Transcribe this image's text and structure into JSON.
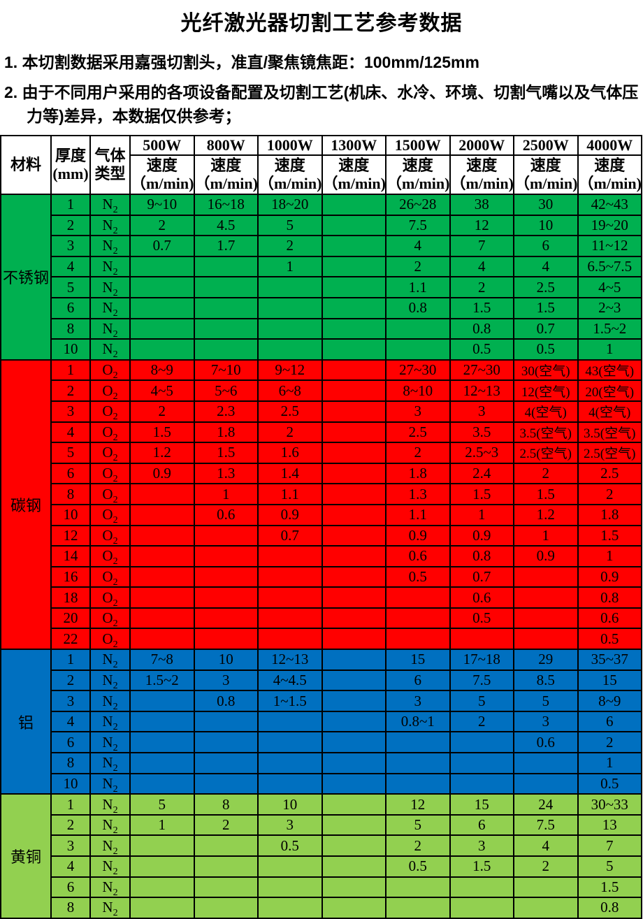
{
  "title": "光纤激光器切割工艺参考数据",
  "notes": [
    {
      "text": "1. 本切割数据采用嘉强切割头，准直/聚焦镜焦距：100mm/125mm",
      "indent": false
    },
    {
      "text": "2. 由于不同用户采用的各项设备配置及切割工艺(机床、水冷、环境、切割气嘴以及气体压",
      "indent": false
    },
    {
      "text": "力等)差异，本数据仅供参考；",
      "indent": true
    }
  ],
  "header": {
    "material": "材料",
    "thickness_l1": "厚度",
    "thickness_l2": "(mm)",
    "gas_l1": "气体",
    "gas_l2": "类型",
    "powers": [
      "500W",
      "800W",
      "1000W",
      "1300W",
      "1500W",
      "2000W",
      "2500W",
      "4000W"
    ],
    "speed_label": "速度",
    "speed_unit": "（m/min)"
  },
  "sections": [
    {
      "material": "不锈钢",
      "color": "#00B050",
      "gas": {
        "base": "N",
        "sub": "2"
      },
      "rows": [
        {
          "t": "1",
          "v": [
            "9~10",
            "16~18",
            "18~20",
            "",
            "26~28",
            "38",
            "30",
            "42~43"
          ]
        },
        {
          "t": "2",
          "v": [
            "2",
            "4.5",
            "5",
            "",
            "7.5",
            "12",
            "10",
            "19~20"
          ]
        },
        {
          "t": "3",
          "v": [
            "0.7",
            "1.7",
            "2",
            "",
            "4",
            "7",
            "6",
            "11~12"
          ]
        },
        {
          "t": "4",
          "v": [
            "",
            "",
            "1",
            "",
            "2",
            "4",
            "4",
            "6.5~7.5"
          ]
        },
        {
          "t": "5",
          "v": [
            "",
            "",
            "",
            "",
            "1.1",
            "2",
            "2.5",
            "4~5"
          ]
        },
        {
          "t": "6",
          "v": [
            "",
            "",
            "",
            "",
            "0.8",
            "1.5",
            "1.5",
            "2~3"
          ]
        },
        {
          "t": "8",
          "v": [
            "",
            "",
            "",
            "",
            "",
            "0.8",
            "0.7",
            "1.5~2"
          ]
        },
        {
          "t": "10",
          "v": [
            "",
            "",
            "",
            "",
            "",
            "0.5",
            "0.5",
            "1"
          ]
        }
      ]
    },
    {
      "material": "碳钢",
      "color": "#FF0000",
      "gas": {
        "base": "O",
        "sub": "2"
      },
      "rows": [
        {
          "t": "1",
          "v": [
            "8~9",
            "7~10",
            "9~12",
            "",
            "27~30",
            "27~30",
            "30(空气)",
            "43(空气)"
          ]
        },
        {
          "t": "2",
          "v": [
            "4~5",
            "5~6",
            "6~8",
            "",
            "8~10",
            "12~13",
            "12(空气)",
            "20(空气)"
          ]
        },
        {
          "t": "3",
          "v": [
            "2",
            "2.3",
            "2.5",
            "",
            "3",
            "3",
            "4(空气)",
            "4(空气)"
          ]
        },
        {
          "t": "4",
          "v": [
            "1.5",
            "1.8",
            "2",
            "",
            "2.5",
            "3.5",
            "3.5(空气)",
            "3.5(空气)"
          ]
        },
        {
          "t": "5",
          "v": [
            "1.2",
            "1.5",
            "1.6",
            "",
            "2",
            "2.5~3",
            "2.5(空气)",
            "2.5(空气)"
          ]
        },
        {
          "t": "6",
          "v": [
            "0.9",
            "1.3",
            "1.4",
            "",
            "1.8",
            "2.4",
            "2",
            "2.5"
          ]
        },
        {
          "t": "8",
          "v": [
            "",
            "1",
            "1.1",
            "",
            "1.3",
            "1.5",
            "1.5",
            "2"
          ]
        },
        {
          "t": "10",
          "v": [
            "",
            "0.6",
            "0.9",
            "",
            "1.1",
            "1",
            "1.2",
            "1.8"
          ]
        },
        {
          "t": "12",
          "v": [
            "",
            "",
            "0.7",
            "",
            "0.9",
            "0.9",
            "1",
            "1.5"
          ]
        },
        {
          "t": "14",
          "v": [
            "",
            "",
            "",
            "",
            "0.6",
            "0.8",
            "0.9",
            "1"
          ]
        },
        {
          "t": "16",
          "v": [
            "",
            "",
            "",
            "",
            "0.5",
            "0.7",
            "",
            "0.9"
          ]
        },
        {
          "t": "18",
          "v": [
            "",
            "",
            "",
            "",
            "",
            "0.6",
            "",
            "0.8"
          ]
        },
        {
          "t": "20",
          "v": [
            "",
            "",
            "",
            "",
            "",
            "0.5",
            "",
            "0.6"
          ]
        },
        {
          "t": "22",
          "v": [
            "",
            "",
            "",
            "",
            "",
            "",
            "",
            "0.5"
          ]
        }
      ]
    },
    {
      "material": "铝",
      "color": "#0070C0",
      "gas": {
        "base": "N",
        "sub": "2"
      },
      "rows": [
        {
          "t": "1",
          "v": [
            "7~8",
            "10",
            "12~13",
            "",
            "15",
            "17~18",
            "29",
            "35~37"
          ]
        },
        {
          "t": "2",
          "v": [
            "1.5~2",
            "3",
            "4~4.5",
            "",
            "6",
            "7.5",
            "8.5",
            "15"
          ]
        },
        {
          "t": "3",
          "v": [
            "",
            "0.8",
            "1~1.5",
            "",
            "3",
            "5",
            "5",
            "8~9"
          ]
        },
        {
          "t": "4",
          "v": [
            "",
            "",
            "",
            "",
            "0.8~1",
            "2",
            "3",
            "6"
          ]
        },
        {
          "t": "6",
          "v": [
            "",
            "",
            "",
            "",
            "",
            "",
            "0.6",
            "2"
          ]
        },
        {
          "t": "8",
          "v": [
            "",
            "",
            "",
            "",
            "",
            "",
            "",
            "1"
          ]
        },
        {
          "t": "10",
          "v": [
            "",
            "",
            "",
            "",
            "",
            "",
            "",
            "0.5"
          ]
        }
      ]
    },
    {
      "material": "黄铜",
      "color": "#92D050",
      "gas": {
        "base": "N",
        "sub": "2"
      },
      "rows": [
        {
          "t": "1",
          "v": [
            "5",
            "8",
            "10",
            "",
            "12",
            "15",
            "24",
            "30~33"
          ]
        },
        {
          "t": "2",
          "v": [
            "1",
            "2",
            "3",
            "",
            "5",
            "6",
            "7.5",
            "13"
          ]
        },
        {
          "t": "3",
          "v": [
            "",
            "",
            "0.5",
            "",
            "2",
            "3",
            "4",
            "7"
          ]
        },
        {
          "t": "4",
          "v": [
            "",
            "",
            "",
            "",
            "0.5",
            "1.5",
            "2",
            "5"
          ]
        },
        {
          "t": "6",
          "v": [
            "",
            "",
            "",
            "",
            "",
            "",
            "",
            "1.5"
          ]
        },
        {
          "t": "8",
          "v": [
            "",
            "",
            "",
            "",
            "",
            "",
            "",
            "0.8"
          ]
        }
      ]
    }
  ]
}
